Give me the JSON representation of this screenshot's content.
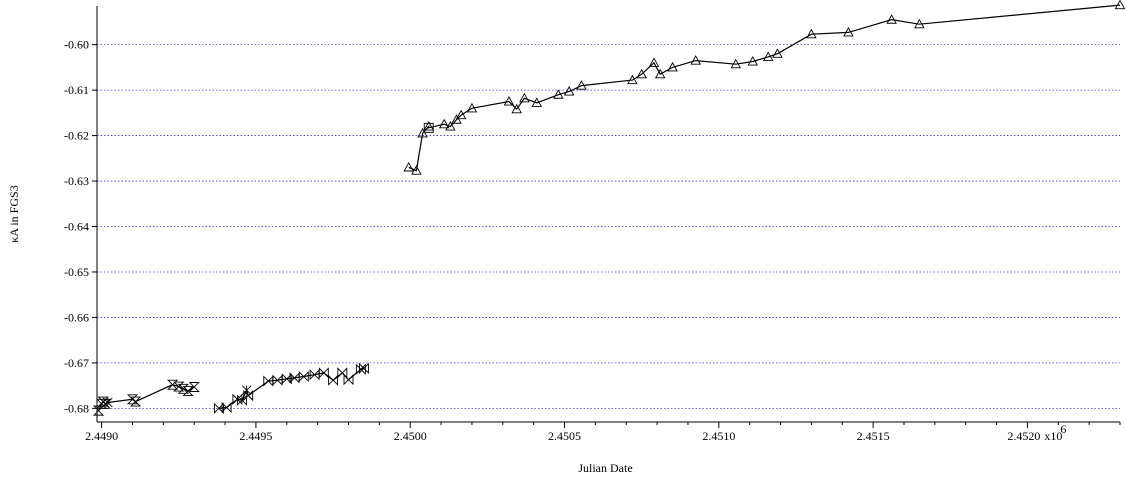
{
  "chart_data": {
    "type": "line",
    "xlabel": "Julian Date",
    "ylabel": "κA in FGS3",
    "x_exponent_label": "x10",
    "x_exponent_power": "6",
    "xlim": [
      2448985,
      2452300
    ],
    "ylim": [
      -0.683,
      -0.5915
    ],
    "grid": "horizontal",
    "x_ticks": [
      2449000,
      2449500,
      2450000,
      2450500,
      2451000,
      2451500,
      2452000
    ],
    "x_tick_labels": [
      "2.4490",
      "2.4495",
      "2.4500",
      "2.4505",
      "2.4510",
      "2.4515",
      "2.4520"
    ],
    "y_ticks": [
      -0.6,
      -0.61,
      -0.62,
      -0.63,
      -0.64,
      -0.65,
      -0.66,
      -0.67,
      -0.68
    ],
    "y_tick_labels": [
      "-0.60",
      "-0.61",
      "-0.62",
      "-0.63",
      "-0.64",
      "-0.65",
      "-0.66",
      "-0.67",
      "-0.68"
    ],
    "series": [
      {
        "marker": "hourglass",
        "x": [
          2448990,
          2449000,
          2449005,
          2449012,
          2449100,
          2449110,
          2449230,
          2449250,
          2449265,
          2449280,
          2449300
        ],
        "y": [
          -0.6805,
          -0.679,
          -0.6785,
          -0.679,
          -0.678,
          -0.6785,
          -0.6748,
          -0.6752,
          -0.6757,
          -0.6762,
          -0.6753
        ]
      },
      {
        "marker": "bowtie",
        "x": [
          2449380,
          2449405,
          2449440,
          2449455,
          2449475,
          2449540,
          2449570,
          2449600,
          2449625,
          2449655,
          2449690,
          2449720,
          2449750,
          2449780,
          2449800,
          2449840,
          2449850
        ],
        "y": [
          -0.68,
          -0.6798,
          -0.678,
          -0.6782,
          -0.6772,
          -0.674,
          -0.6738,
          -0.6735,
          -0.6733,
          -0.673,
          -0.6726,
          -0.6722,
          -0.6738,
          -0.6722,
          -0.6737,
          -0.6714,
          -0.6712
        ]
      },
      {
        "marker": "asterisk",
        "x": [
          2449020,
          2449470
        ],
        "y": [
          -0.6787,
          -0.676
        ]
      },
      {
        "marker": "triangle",
        "x": [
          2449995,
          2450020,
          2450040,
          2450060,
          2450110,
          2450130,
          2450150,
          2450165,
          2450200,
          2450320,
          2450345,
          2450370,
          2450410,
          2450480,
          2450515,
          2450555,
          2450720,
          2450750,
          2450790,
          2450810,
          2450850,
          2450925,
          2451055,
          2451110,
          2451160,
          2451190,
          2451300,
          2451420,
          2451560,
          2451650,
          2452300
        ],
        "y": [
          -0.627,
          -0.6277,
          -0.6195,
          -0.618,
          -0.6175,
          -0.618,
          -0.6165,
          -0.6155,
          -0.614,
          -0.6125,
          -0.6142,
          -0.6118,
          -0.6128,
          -0.611,
          -0.6103,
          -0.609,
          -0.6078,
          -0.6065,
          -0.604,
          -0.6065,
          -0.605,
          -0.6035,
          -0.6043,
          -0.6037,
          -0.6027,
          -0.602,
          -0.5977,
          -0.5973,
          -0.5945,
          -0.5955,
          -0.5913
        ]
      },
      {
        "marker": "square",
        "x": [
          2450060
        ],
        "y": [
          -0.6183
        ]
      }
    ]
  }
}
